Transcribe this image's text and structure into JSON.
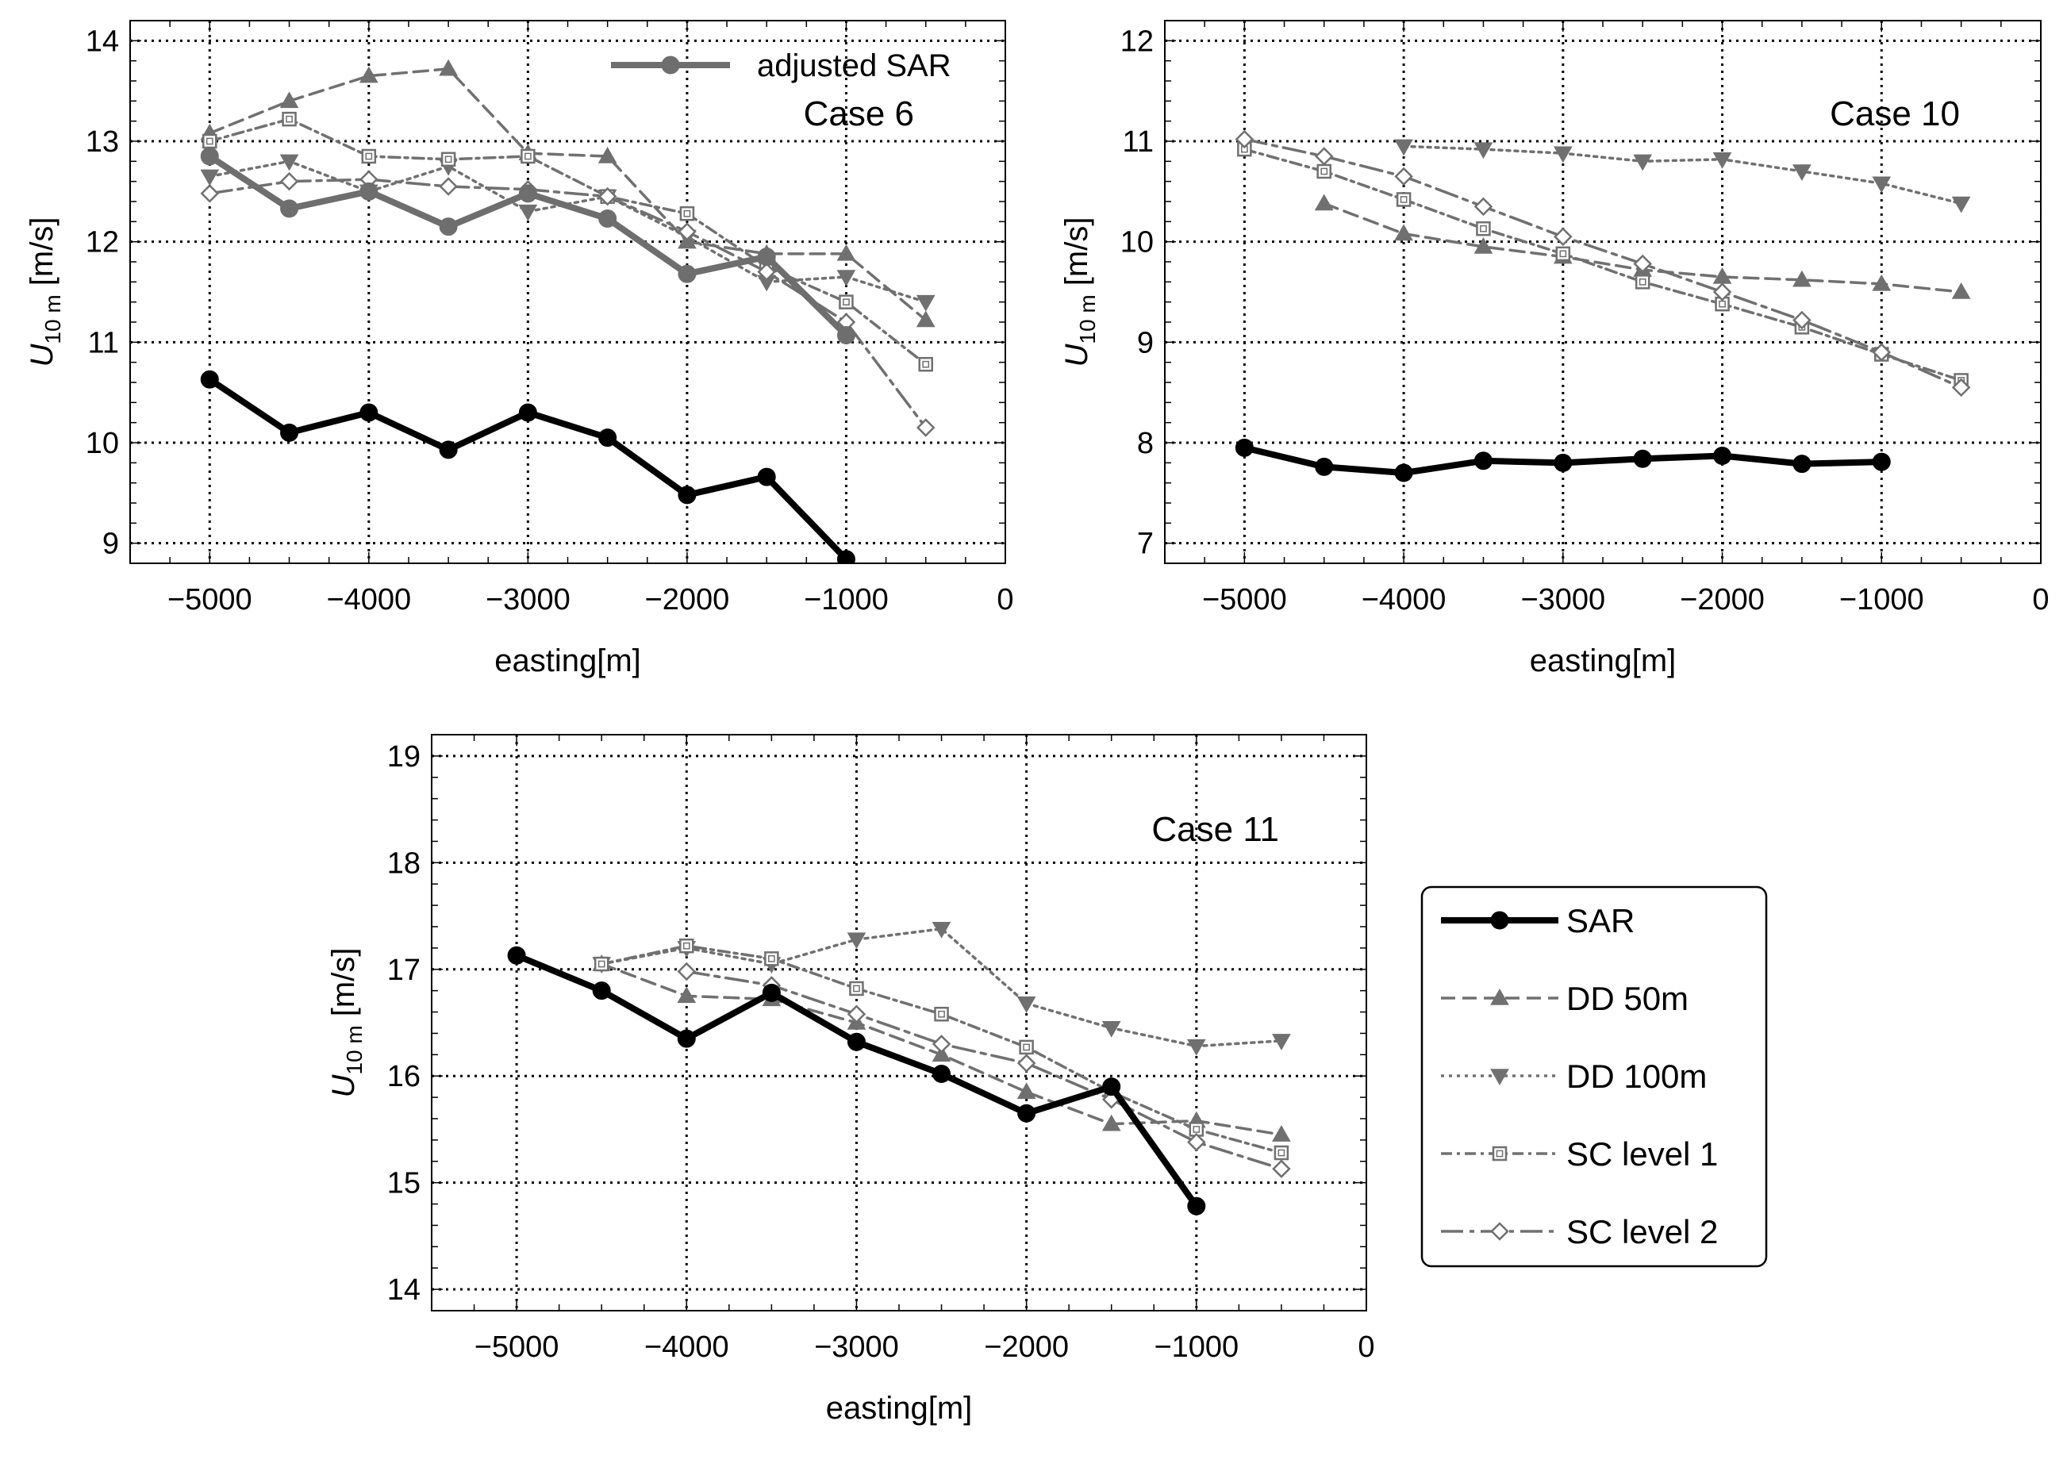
{
  "colors": {
    "sar": "#000000",
    "model": "#707070",
    "adjusted": "#6e6e6e",
    "grid": "#000000",
    "frame": "#000000"
  },
  "legend_entries": [
    {
      "label": "SAR",
      "series_key": "SAR"
    },
    {
      "label": "DD 50m",
      "series_key": "DD50"
    },
    {
      "label": "DD 100m",
      "series_key": "DD100"
    },
    {
      "label": "SC level 1",
      "series_key": "SC1"
    },
    {
      "label": "SC level 2",
      "series_key": "SC2"
    }
  ],
  "chart_data": [
    {
      "type": "line",
      "title": "Case 6",
      "xlabel": "easting[m]",
      "ylabel": "U10m [m/s]",
      "ylabel_main": "U",
      "ylabel_sub": "10 m",
      "ylabel_unit": "[m/s]",
      "xlim": [
        -5500,
        0
      ],
      "ylim": [
        8.8,
        14.2
      ],
      "xticks": [
        -5000,
        -4000,
        -3000,
        -2000,
        -1000,
        0
      ],
      "xtick_labels": [
        "−5000",
        "−4000",
        "−3000",
        "−2000",
        "−1000",
        "0"
      ],
      "yticks": [
        9,
        10,
        11,
        12,
        13,
        14
      ],
      "ytick_labels": [
        "9",
        "10",
        "11",
        "12",
        "13",
        "14"
      ],
      "grid": true,
      "inline_legend": "adjusted SAR",
      "series": [
        {
          "key": "DD50",
          "name": "DD 50m",
          "x": [
            -5000,
            -4500,
            -4000,
            -3500,
            -3000,
            -2500,
            -2000,
            -1500,
            -1000,
            -500
          ],
          "y": [
            13.08,
            13.4,
            13.65,
            13.72,
            12.88,
            12.85,
            12.0,
            11.88,
            11.88,
            11.22
          ]
        },
        {
          "key": "DD100",
          "name": "DD 100m",
          "x": [
            -5000,
            -4500,
            -4000,
            -3500,
            -3000,
            -2500,
            -2000,
            -1500,
            -1000,
            -500
          ],
          "y": [
            12.65,
            12.8,
            12.5,
            12.75,
            12.3,
            12.45,
            12.05,
            11.6,
            11.65,
            11.4
          ]
        },
        {
          "key": "SC1",
          "name": "SC level 1",
          "x": [
            -5000,
            -4500,
            -4000,
            -3500,
            -3000,
            -2500,
            -2000,
            -1500,
            -1000,
            -500
          ],
          "y": [
            13.0,
            13.22,
            12.85,
            12.82,
            12.85,
            12.45,
            12.28,
            11.75,
            11.4,
            10.78
          ]
        },
        {
          "key": "SC2",
          "name": "SC level 2",
          "x": [
            -5000,
            -4500,
            -4000,
            -3500,
            -3000,
            -2500,
            -2000,
            -1500,
            -1000,
            -500
          ],
          "y": [
            12.48,
            12.6,
            12.62,
            12.55,
            12.52,
            12.45,
            12.1,
            11.7,
            11.2,
            10.15
          ]
        },
        {
          "key": "ADJ",
          "name": "adjusted SAR",
          "x": [
            -5000,
            -4500,
            -4000,
            -3500,
            -3000,
            -2500,
            -2000,
            -1500,
            -1000
          ],
          "y": [
            12.85,
            12.33,
            12.5,
            12.15,
            12.48,
            12.23,
            11.68,
            11.85,
            11.07
          ]
        },
        {
          "key": "SAR",
          "name": "SAR",
          "x": [
            -5000,
            -4500,
            -4000,
            -3500,
            -3000,
            -2500,
            -2000,
            -1500,
            -1000
          ],
          "y": [
            10.63,
            10.1,
            10.3,
            9.93,
            10.3,
            10.05,
            9.48,
            9.66,
            8.84
          ]
        }
      ]
    },
    {
      "type": "line",
      "title": "Case 10",
      "xlabel": "easting[m]",
      "ylabel": "U10m [m/s]",
      "ylabel_main": "U",
      "ylabel_sub": "10 m",
      "ylabel_unit": "[m/s]",
      "xlim": [
        -5500,
        0
      ],
      "ylim": [
        6.8,
        12.2
      ],
      "xticks": [
        -5000,
        -4000,
        -3000,
        -2000,
        -1000,
        0
      ],
      "xtick_labels": [
        "−5000",
        "−4000",
        "−3000",
        "−2000",
        "−1000",
        "0"
      ],
      "yticks": [
        7,
        8,
        9,
        10,
        11,
        12
      ],
      "ytick_labels": [
        "7",
        "8",
        "9",
        "10",
        "11",
        "12"
      ],
      "grid": true,
      "series": [
        {
          "key": "DD50",
          "name": "DD 50m",
          "x": [
            -4500,
            -4000,
            -3500,
            -3000,
            -2500,
            -2000,
            -1500,
            -1000,
            -500
          ],
          "y": [
            10.38,
            10.08,
            9.95,
            9.85,
            9.72,
            9.65,
            9.62,
            9.58,
            9.5
          ]
        },
        {
          "key": "DD100",
          "name": "DD 100m",
          "x": [
            -4000,
            -3500,
            -3000,
            -2500,
            -2000,
            -1500,
            -1000,
            -500
          ],
          "y": [
            10.95,
            10.92,
            10.88,
            10.8,
            10.82,
            10.7,
            10.58,
            10.38
          ]
        },
        {
          "key": "SC1",
          "name": "SC level 1",
          "x": [
            -5000,
            -4500,
            -4000,
            -3500,
            -3000,
            -2500,
            -2000,
            -1500,
            -1000,
            -500
          ],
          "y": [
            10.92,
            10.7,
            10.42,
            10.13,
            9.88,
            9.6,
            9.38,
            9.15,
            8.88,
            8.62
          ]
        },
        {
          "key": "SC2",
          "name": "SC level 2",
          "x": [
            -5000,
            -4500,
            -4000,
            -3500,
            -3000,
            -2500,
            -2000,
            -1500,
            -1000,
            -500
          ],
          "y": [
            11.02,
            10.85,
            10.65,
            10.35,
            10.05,
            9.78,
            9.5,
            9.22,
            8.9,
            8.55
          ]
        },
        {
          "key": "SAR",
          "name": "SAR",
          "x": [
            -5000,
            -4500,
            -4000,
            -3500,
            -3000,
            -2500,
            -2000,
            -1500,
            -1000
          ],
          "y": [
            7.95,
            7.76,
            7.7,
            7.82,
            7.8,
            7.84,
            7.87,
            7.79,
            7.81
          ]
        }
      ]
    },
    {
      "type": "line",
      "title": "Case 11",
      "xlabel": "easting[m]",
      "ylabel": "U10m [m/s]",
      "ylabel_main": "U",
      "ylabel_sub": "10 m",
      "ylabel_unit": "[m/s]",
      "xlim": [
        -5500,
        0
      ],
      "ylim": [
        13.8,
        19.2
      ],
      "xticks": [
        -5000,
        -4000,
        -3000,
        -2000,
        -1000,
        0
      ],
      "xtick_labels": [
        "−5000",
        "−4000",
        "−3000",
        "−2000",
        "−1000",
        "0"
      ],
      "yticks": [
        14,
        15,
        16,
        17,
        18,
        19
      ],
      "ytick_labels": [
        "14",
        "15",
        "16",
        "17",
        "18",
        "19"
      ],
      "grid": true,
      "series": [
        {
          "key": "DD50",
          "name": "DD 50m",
          "x": [
            -4500,
            -4000,
            -3500,
            -3000,
            -2500,
            -2000,
            -1500,
            -1000,
            -500
          ],
          "y": [
            17.05,
            16.75,
            16.72,
            16.5,
            16.2,
            15.85,
            15.55,
            15.58,
            15.45
          ]
        },
        {
          "key": "DD100",
          "name": "DD 100m",
          "x": [
            -4500,
            -4000,
            -3500,
            -3000,
            -2500,
            -2000,
            -1500,
            -1000,
            -500
          ],
          "y": [
            17.05,
            17.2,
            17.05,
            17.28,
            17.38,
            16.68,
            16.45,
            16.28,
            16.33
          ]
        },
        {
          "key": "SC1",
          "name": "SC level 1",
          "x": [
            -4500,
            -4000,
            -3500,
            -3000,
            -2500,
            -2000,
            -1500,
            -1000,
            -500
          ],
          "y": [
            17.05,
            17.22,
            17.1,
            16.82,
            16.58,
            16.27,
            15.85,
            15.5,
            15.28
          ]
        },
        {
          "key": "SC2",
          "name": "SC level 2",
          "x": [
            -4000,
            -3500,
            -3000,
            -2500,
            -2000,
            -1500,
            -1000,
            -500
          ],
          "y": [
            16.98,
            16.85,
            16.58,
            16.3,
            16.12,
            15.78,
            15.38,
            15.13
          ]
        },
        {
          "key": "SAR",
          "name": "SAR",
          "x": [
            -5000,
            -4500,
            -4000,
            -3500,
            -3000,
            -2500,
            -2000,
            -1500,
            -1000
          ],
          "y": [
            17.13,
            16.8,
            16.35,
            16.78,
            16.32,
            16.02,
            15.65,
            15.9,
            14.78
          ]
        }
      ]
    }
  ]
}
